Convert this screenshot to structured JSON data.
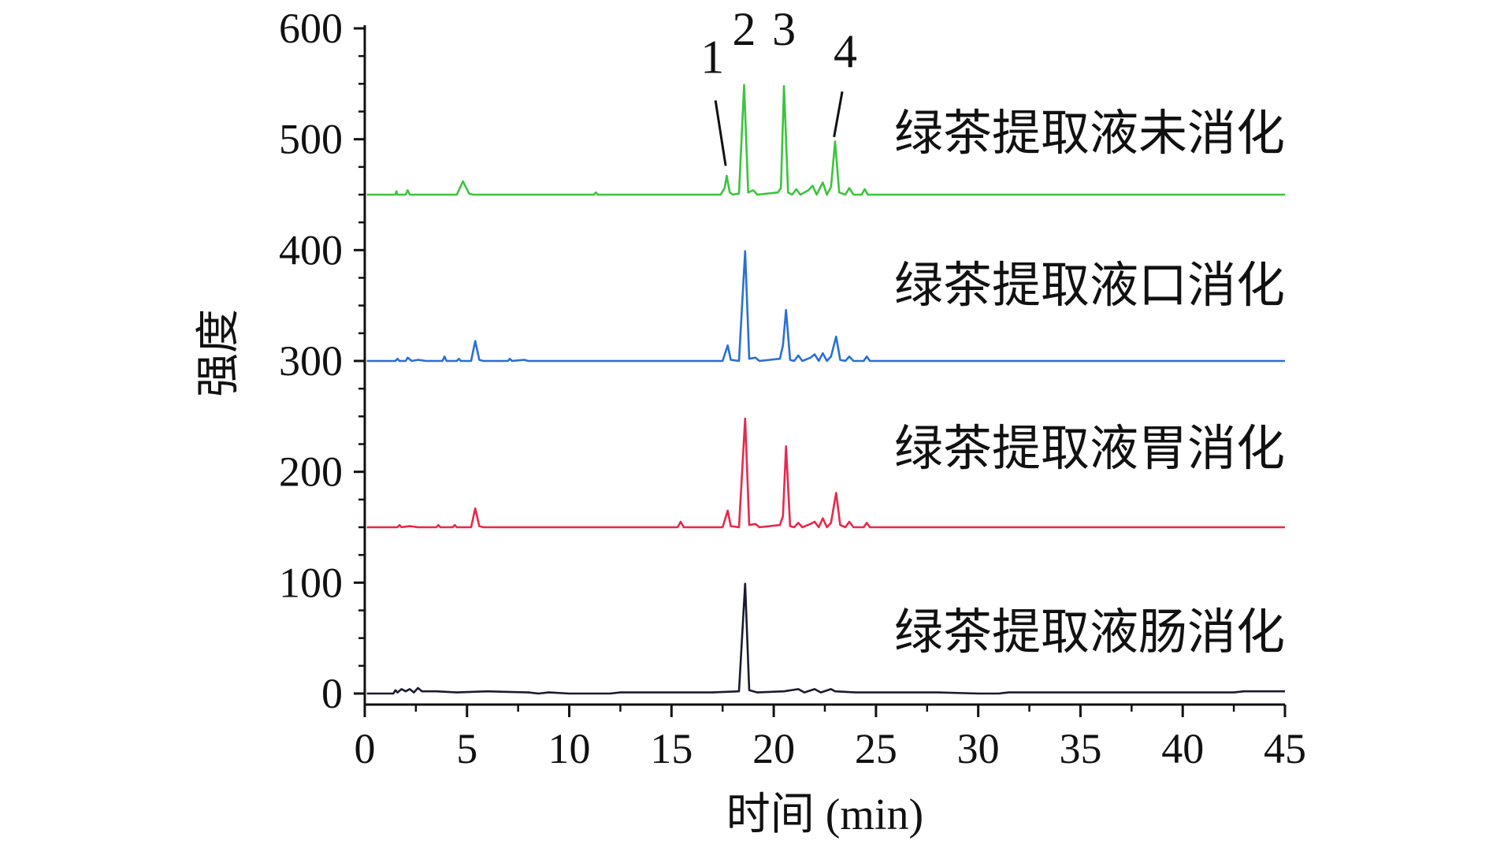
{
  "chart_data": {
    "type": "line",
    "title": "",
    "xlabel": "时间 (min)",
    "ylabel": "强度",
    "xlim": [
      0,
      45
    ],
    "ylim": [
      0,
      600
    ],
    "x_ticks": [
      0,
      5,
      10,
      15,
      20,
      25,
      30,
      35,
      40,
      45
    ],
    "y_ticks": [
      0,
      100,
      200,
      300,
      400,
      500,
      600
    ],
    "grid": false,
    "legend": "inline text labels to the right of each trace",
    "series": [
      {
        "name": "绿茶提取液未消化",
        "color": "#3cc43c",
        "baseline": 450,
        "points": [
          [
            0.1,
            450
          ],
          [
            1.5,
            450
          ],
          [
            1.55,
            453
          ],
          [
            1.6,
            450
          ],
          [
            2.0,
            450
          ],
          [
            2.1,
            454
          ],
          [
            2.2,
            450
          ],
          [
            4.5,
            450
          ],
          [
            4.8,
            462
          ],
          [
            5.1,
            451
          ],
          [
            5.3,
            450
          ],
          [
            11.2,
            450
          ],
          [
            11.3,
            452
          ],
          [
            11.4,
            450
          ],
          [
            17.4,
            450
          ],
          [
            17.6,
            456
          ],
          [
            17.7,
            467
          ],
          [
            17.85,
            452
          ],
          [
            18.0,
            450
          ],
          [
            18.3,
            451
          ],
          [
            18.55,
            549
          ],
          [
            18.75,
            452
          ],
          [
            19.0,
            454
          ],
          [
            19.2,
            450
          ],
          [
            20.2,
            452
          ],
          [
            20.35,
            456
          ],
          [
            20.5,
            548
          ],
          [
            20.7,
            452
          ],
          [
            20.9,
            450
          ],
          [
            21.1,
            455
          ],
          [
            21.3,
            450
          ],
          [
            21.7,
            454
          ],
          [
            21.9,
            458
          ],
          [
            22.1,
            450
          ],
          [
            22.4,
            461
          ],
          [
            22.6,
            450
          ],
          [
            22.8,
            457
          ],
          [
            23.0,
            498
          ],
          [
            23.2,
            452
          ],
          [
            23.5,
            450
          ],
          [
            23.7,
            456
          ],
          [
            23.9,
            450
          ],
          [
            24.3,
            450
          ],
          [
            24.45,
            455
          ],
          [
            24.6,
            450
          ],
          [
            45,
            450
          ]
        ],
        "peaks": [
          {
            "label": "1",
            "x": 17.7,
            "y": 467
          },
          {
            "label": "2",
            "x": 18.55,
            "y": 549
          },
          {
            "label": "3",
            "x": 20.5,
            "y": 548
          },
          {
            "label": "4",
            "x": 23.0,
            "y": 498
          }
        ]
      },
      {
        "name": "绿茶提取液口消化",
        "color": "#2a6fd6",
        "baseline": 300,
        "points": [
          [
            0.1,
            300
          ],
          [
            1.5,
            300
          ],
          [
            1.6,
            302
          ],
          [
            1.7,
            300
          ],
          [
            2.0,
            300
          ],
          [
            2.1,
            303
          ],
          [
            2.3,
            300
          ],
          [
            2.6,
            301
          ],
          [
            3.0,
            300
          ],
          [
            3.8,
            300
          ],
          [
            3.9,
            304
          ],
          [
            4.0,
            300
          ],
          [
            4.5,
            300
          ],
          [
            4.6,
            302
          ],
          [
            4.7,
            300
          ],
          [
            5.2,
            300
          ],
          [
            5.4,
            318
          ],
          [
            5.6,
            301
          ],
          [
            5.8,
            300
          ],
          [
            7.0,
            300
          ],
          [
            7.1,
            302
          ],
          [
            7.2,
            300
          ],
          [
            7.8,
            301
          ],
          [
            8.0,
            300
          ],
          [
            17.5,
            300
          ],
          [
            17.75,
            314
          ],
          [
            17.9,
            301
          ],
          [
            18.3,
            300
          ],
          [
            18.6,
            399
          ],
          [
            18.8,
            302
          ],
          [
            19.1,
            303
          ],
          [
            19.3,
            300
          ],
          [
            20.3,
            302
          ],
          [
            20.45,
            314
          ],
          [
            20.6,
            346
          ],
          [
            20.8,
            301
          ],
          [
            21.0,
            300
          ],
          [
            21.2,
            305
          ],
          [
            21.4,
            300
          ],
          [
            21.8,
            303
          ],
          [
            22.0,
            306
          ],
          [
            22.2,
            300
          ],
          [
            22.4,
            307
          ],
          [
            22.6,
            300
          ],
          [
            22.8,
            304
          ],
          [
            23.05,
            322
          ],
          [
            23.25,
            301
          ],
          [
            23.5,
            300
          ],
          [
            23.7,
            304
          ],
          [
            23.9,
            300
          ],
          [
            24.4,
            300
          ],
          [
            24.55,
            304
          ],
          [
            24.7,
            300
          ],
          [
            45,
            300
          ]
        ]
      },
      {
        "name": "绿茶提取液胃消化",
        "color": "#e8284c",
        "baseline": 150,
        "points": [
          [
            0.1,
            150
          ],
          [
            1.6,
            150
          ],
          [
            1.7,
            152
          ],
          [
            1.8,
            150
          ],
          [
            2.2,
            151
          ],
          [
            2.6,
            150
          ],
          [
            3.5,
            150
          ],
          [
            3.6,
            152
          ],
          [
            3.7,
            150
          ],
          [
            4.3,
            150
          ],
          [
            4.4,
            152
          ],
          [
            4.5,
            150
          ],
          [
            5.2,
            150
          ],
          [
            5.4,
            167
          ],
          [
            5.6,
            151
          ],
          [
            5.8,
            150
          ],
          [
            15.3,
            150
          ],
          [
            15.45,
            155
          ],
          [
            15.6,
            150
          ],
          [
            17.5,
            150
          ],
          [
            17.75,
            165
          ],
          [
            17.9,
            151
          ],
          [
            18.3,
            150
          ],
          [
            18.6,
            248
          ],
          [
            18.8,
            152
          ],
          [
            19.1,
            153
          ],
          [
            19.3,
            150
          ],
          [
            20.3,
            152
          ],
          [
            20.45,
            160
          ],
          [
            20.6,
            223
          ],
          [
            20.8,
            151
          ],
          [
            21.0,
            150
          ],
          [
            21.2,
            154
          ],
          [
            21.4,
            150
          ],
          [
            21.8,
            153
          ],
          [
            22.0,
            155
          ],
          [
            22.2,
            150
          ],
          [
            22.4,
            158
          ],
          [
            22.6,
            150
          ],
          [
            22.8,
            154
          ],
          [
            23.05,
            181
          ],
          [
            23.25,
            152
          ],
          [
            23.5,
            150
          ],
          [
            23.7,
            155
          ],
          [
            23.9,
            150
          ],
          [
            24.4,
            150
          ],
          [
            24.55,
            154
          ],
          [
            24.7,
            150
          ],
          [
            45,
            150
          ]
        ]
      },
      {
        "name": "绿茶提取液肠消化",
        "color": "#1a1a33",
        "baseline": 0,
        "points": [
          [
            0.1,
            0
          ],
          [
            1.4,
            0
          ],
          [
            1.5,
            3
          ],
          [
            1.6,
            1
          ],
          [
            1.8,
            4
          ],
          [
            2.0,
            2
          ],
          [
            2.2,
            4
          ],
          [
            2.4,
            1
          ],
          [
            2.6,
            5
          ],
          [
            2.8,
            2
          ],
          [
            3.5,
            2
          ],
          [
            4.5,
            1
          ],
          [
            6.0,
            2
          ],
          [
            8.0,
            1
          ],
          [
            8.5,
            0
          ],
          [
            9.0,
            1
          ],
          [
            10.0,
            0
          ],
          [
            12.0,
            0
          ],
          [
            12.5,
            1
          ],
          [
            15.0,
            1
          ],
          [
            17.0,
            1
          ],
          [
            18.3,
            2
          ],
          [
            18.6,
            99
          ],
          [
            18.8,
            3
          ],
          [
            19.2,
            1
          ],
          [
            20.5,
            2
          ],
          [
            21.2,
            4
          ],
          [
            21.5,
            1
          ],
          [
            22.0,
            4
          ],
          [
            22.3,
            1
          ],
          [
            22.8,
            4
          ],
          [
            23.0,
            2
          ],
          [
            24.0,
            1
          ],
          [
            28.0,
            1
          ],
          [
            30.0,
            0
          ],
          [
            31.0,
            0
          ],
          [
            31.5,
            1
          ],
          [
            35.0,
            1
          ],
          [
            42.5,
            1
          ],
          [
            43.0,
            2
          ],
          [
            45,
            2
          ]
        ]
      }
    ]
  }
}
